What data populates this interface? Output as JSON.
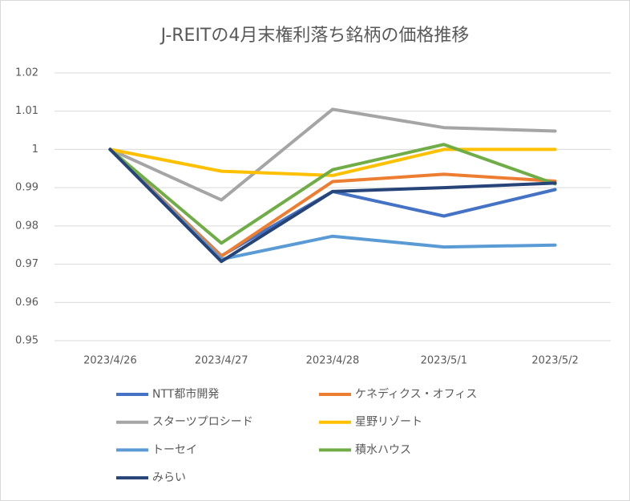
{
  "chart_data": {
    "type": "line",
    "title": "J-REITの4月末権利落ち銘柄の価格推移",
    "categories": [
      "2023/4/26",
      "2023/4/27",
      "2023/4/28",
      "2023/5/1",
      "2023/5/2"
    ],
    "ylim": [
      0.95,
      1.02
    ],
    "yticks": [
      0.95,
      0.96,
      0.97,
      0.98,
      0.99,
      1,
      1.01,
      1.02
    ],
    "grid": true,
    "series": [
      {
        "name": "NTT都市開発",
        "color": "#4472c4",
        "values": [
          1,
          0.9722,
          0.989,
          0.9826,
          0.9895
        ]
      },
      {
        "name": "ケネディクス・オフィス",
        "color": "#ed7d31",
        "values": [
          1,
          0.9721,
          0.9916,
          0.9935,
          0.9917
        ]
      },
      {
        "name": "スターツプロシード",
        "color": "#a5a5a5",
        "values": [
          1,
          0.9868,
          1.0105,
          1.0057,
          1.0048
        ]
      },
      {
        "name": "星野リゾート",
        "color": "#ffc000",
        "values": [
          1,
          0.9943,
          0.9932,
          1,
          1
        ]
      },
      {
        "name": "トーセイ",
        "color": "#5b9bd5",
        "values": [
          1,
          0.9713,
          0.9773,
          0.9745,
          0.975
        ]
      },
      {
        "name": "積水ハウス",
        "color": "#70ad47",
        "values": [
          1,
          0.9755,
          0.9947,
          1.0013,
          0.991
        ]
      },
      {
        "name": "みらい",
        "color": "#264478",
        "values": [
          1,
          0.9707,
          0.989,
          0.99,
          0.9912
        ]
      }
    ]
  }
}
